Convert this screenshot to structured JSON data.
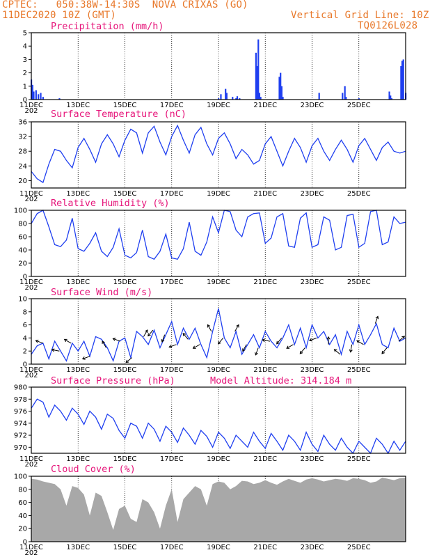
{
  "header": {
    "line1_left": "CPTEC:   050:38W-14:30S  NOVA CRIXAS (GO)",
    "line2_left": "11DEC2020 10Z (GMT)",
    "line2_right": "Vertical Grid Line: 10Z",
    "line3_right": "TQ0126L028"
  },
  "colors": {
    "header": "#e8782a",
    "title": "#e6157a",
    "series": "#1f3ff0",
    "cloud": "#a8a8a8"
  },
  "x_labels": [
    "11DEC",
    "13DEC",
    "15DEC",
    "17DEC",
    "19DEC",
    "21DEC",
    "23DEC",
    "25DEC"
  ],
  "x_stub": "202",
  "chart_data": [
    {
      "type": "bar",
      "title": "Precipitation (mm/h)",
      "ylim": [
        0,
        5
      ],
      "yticks": [
        0,
        1,
        2,
        3,
        4,
        5
      ],
      "x": [
        0.0,
        0.05,
        0.1,
        0.2,
        0.3,
        0.4,
        0.5,
        1.2,
        8.0,
        8.1,
        8.3,
        8.35,
        8.6,
        8.75,
        8.8,
        8.9,
        9.6,
        9.65,
        9.7,
        9.75,
        9.8,
        10.6,
        10.65,
        10.7,
        10.75,
        12.3,
        13.3,
        13.4,
        13.45,
        14.0,
        15.3,
        15.35,
        15.4,
        15.8,
        15.85,
        15.9,
        16.0
      ],
      "values": [
        1.5,
        1.1,
        0.6,
        0.7,
        0.4,
        0.5,
        0.2,
        0.1,
        0.1,
        0.4,
        0.8,
        0.5,
        0.2,
        0.1,
        0.25,
        0.1,
        3.5,
        2.5,
        4.5,
        0.5,
        0.2,
        1.7,
        2.0,
        1.0,
        0.2,
        0.5,
        0.5,
        1.0,
        0.2,
        0.1,
        0.6,
        0.3,
        0.1,
        2.5,
        2.9,
        3.0,
        0.5
      ]
    },
    {
      "type": "line",
      "title": "Surface Temperature (nC)",
      "ylim": [
        18,
        36
      ],
      "yticks": [
        20,
        24,
        28,
        32,
        36
      ],
      "x": [
        0,
        0.25,
        0.5,
        0.75,
        1.0,
        1.25,
        1.5,
        1.75,
        2.0,
        2.25,
        2.5,
        2.75,
        3.0,
        3.25,
        3.5,
        3.75,
        4.0,
        4.25,
        4.5,
        4.75,
        5.0,
        5.25,
        5.5,
        5.75,
        6.0,
        6.25,
        6.5,
        6.75,
        7.0,
        7.25,
        7.5,
        7.75,
        8.0,
        8.25,
        8.5,
        8.75,
        9.0,
        9.25,
        9.5,
        9.75,
        10.0,
        10.25,
        10.5,
        10.75,
        11.0,
        11.25,
        11.5,
        11.75,
        12.0,
        12.25,
        12.5,
        12.75,
        13.0,
        13.25,
        13.5,
        13.75,
        14.0,
        14.25,
        14.5,
        14.75,
        15.0,
        15.25,
        15.5,
        15.75,
        16.0
      ],
      "values": [
        22.5,
        20.5,
        19.5,
        24.5,
        28.5,
        28.0,
        25.5,
        23.5,
        29.0,
        31.5,
        28.5,
        25.0,
        30.0,
        32.5,
        30.0,
        26.5,
        31.0,
        34.0,
        33.0,
        27.5,
        33.0,
        34.8,
        30.5,
        27.0,
        32.0,
        35.0,
        31.0,
        27.5,
        32.5,
        34.5,
        30.0,
        27.0,
        31.5,
        33.0,
        30.0,
        26.0,
        28.5,
        27.0,
        24.5,
        25.5,
        30.0,
        32.0,
        28.0,
        24.0,
        28.0,
        31.5,
        29.0,
        25.0,
        29.5,
        31.5,
        28.0,
        25.5,
        28.5,
        31.0,
        28.5,
        25.0,
        29.5,
        31.5,
        28.5,
        25.5,
        29.0,
        30.5,
        28.0,
        27.5,
        28.0
      ]
    },
    {
      "type": "line",
      "title": "Relative Humidity (%)",
      "ylim": [
        0,
        100
      ],
      "yticks": [
        0,
        20,
        40,
        60,
        80,
        100
      ],
      "x": [
        0,
        0.25,
        0.5,
        0.75,
        1.0,
        1.25,
        1.5,
        1.75,
        2.0,
        2.25,
        2.5,
        2.75,
        3.0,
        3.25,
        3.5,
        3.75,
        4.0,
        4.25,
        4.5,
        4.75,
        5.0,
        5.25,
        5.5,
        5.75,
        6.0,
        6.25,
        6.5,
        6.75,
        7.0,
        7.25,
        7.5,
        7.75,
        8.0,
        8.25,
        8.5,
        8.75,
        9.0,
        9.25,
        9.5,
        9.75,
        10.0,
        10.25,
        10.5,
        10.75,
        11.0,
        11.25,
        11.5,
        11.75,
        12.0,
        12.25,
        12.5,
        12.75,
        13.0,
        13.25,
        13.5,
        13.75,
        14.0,
        14.25,
        14.5,
        14.75,
        15.0,
        15.25,
        15.5,
        15.75,
        16.0
      ],
      "values": [
        80,
        95,
        100,
        75,
        48,
        45,
        55,
        88,
        42,
        38,
        50,
        66,
        38,
        30,
        44,
        72,
        32,
        28,
        36,
        70,
        30,
        26,
        38,
        64,
        28,
        26,
        42,
        82,
        38,
        32,
        52,
        90,
        66,
        100,
        98,
        70,
        60,
        90,
        95,
        96,
        50,
        58,
        90,
        95,
        46,
        44,
        88,
        96,
        44,
        48,
        90,
        85,
        40,
        44,
        92,
        94,
        44,
        50,
        98,
        100,
        48,
        52,
        90,
        80,
        82
      ]
    },
    {
      "type": "line",
      "title": "Surface Wind (m/s)",
      "ylim": [
        0,
        10
      ],
      "yticks": [
        0,
        2,
        4,
        6,
        8,
        10
      ],
      "x": [
        0,
        0.25,
        0.5,
        0.75,
        1.0,
        1.25,
        1.5,
        1.75,
        2.0,
        2.25,
        2.5,
        2.75,
        3.0,
        3.25,
        3.5,
        3.75,
        4.0,
        4.25,
        4.5,
        4.75,
        5.0,
        5.25,
        5.5,
        5.75,
        6.0,
        6.25,
        6.5,
        6.75,
        7.0,
        7.25,
        7.5,
        7.75,
        8.0,
        8.25,
        8.5,
        8.75,
        9.0,
        9.25,
        9.5,
        9.75,
        10.0,
        10.25,
        10.5,
        10.75,
        11.0,
        11.25,
        11.5,
        11.75,
        12.0,
        12.25,
        12.5,
        12.75,
        13.0,
        13.25,
        13.5,
        13.75,
        14.0,
        14.25,
        14.5,
        14.75,
        15.0,
        15.25,
        15.5,
        15.75,
        16.0
      ],
      "values": [
        1.5,
        2.8,
        3.2,
        0.8,
        3.5,
        2.0,
        0.5,
        3.2,
        2.0,
        3.5,
        1.2,
        4.2,
        3.8,
        2.5,
        0.5,
        3.5,
        4.0,
        1.0,
        5.0,
        4.2,
        3.0,
        5.2,
        2.5,
        4.5,
        6.5,
        3.0,
        5.5,
        3.8,
        5.5,
        3.0,
        1.0,
        5.0,
        8.5,
        4.0,
        2.5,
        5.0,
        1.5,
        3.0,
        4.5,
        2.5,
        5.0,
        3.5,
        2.5,
        4.0,
        6.0,
        3.0,
        5.5,
        2.5,
        6.0,
        4.0,
        5.0,
        3.0,
        4.5,
        1.5,
        5.0,
        3.0,
        6.0,
        3.0,
        4.5,
        6.2,
        3.0,
        2.5,
        5.5,
        3.5,
        4.0
      ],
      "vectors_x": [
        0.5,
        1.2,
        1.7,
        2.5,
        3.2,
        3.8,
        4.3,
        4.8,
        5.2,
        5.7,
        6.2,
        6.7,
        7.2,
        7.7,
        8.2,
        8.7,
        9.2,
        9.7,
        10.2,
        10.7,
        11.2,
        11.7,
        12.2,
        12.7,
        13.2,
        13.7,
        14.2,
        14.7,
        15.2,
        15.7
      ],
      "vectors_dir": [
        160,
        170,
        150,
        200,
        120,
        160,
        220,
        60,
        230,
        250,
        200,
        130,
        210,
        120,
        230,
        60,
        240,
        250,
        170,
        230,
        210,
        230,
        200,
        90,
        140,
        260,
        150,
        70,
        230,
        40
      ]
    },
    {
      "type": "line",
      "title": "Surface Pressure (hPa)",
      "annotation": "Model Altitude: 314.184 m",
      "ylim": [
        969,
        980
      ],
      "yticks": [
        970,
        972,
        974,
        976,
        978,
        980
      ],
      "x": [
        0,
        0.25,
        0.5,
        0.75,
        1.0,
        1.25,
        1.5,
        1.75,
        2.0,
        2.25,
        2.5,
        2.75,
        3.0,
        3.25,
        3.5,
        3.75,
        4.0,
        4.25,
        4.5,
        4.75,
        5.0,
        5.25,
        5.5,
        5.75,
        6.0,
        6.25,
        6.5,
        6.75,
        7.0,
        7.25,
        7.5,
        7.75,
        8.0,
        8.25,
        8.5,
        8.75,
        9.0,
        9.25,
        9.5,
        9.75,
        10.0,
        10.25,
        10.5,
        10.75,
        11.0,
        11.25,
        11.5,
        11.75,
        12.0,
        12.25,
        12.5,
        12.75,
        13.0,
        13.25,
        13.5,
        13.75,
        14.0,
        14.25,
        14.5,
        14.75,
        15.0,
        15.25,
        15.5,
        15.75,
        16.0
      ],
      "values": [
        976.5,
        978.0,
        977.5,
        975.0,
        977.0,
        976.0,
        974.5,
        976.5,
        975.5,
        973.8,
        976.0,
        975.0,
        973.0,
        975.5,
        974.8,
        972.8,
        971.5,
        974.0,
        973.5,
        971.5,
        974.0,
        973.0,
        971.0,
        973.5,
        972.5,
        970.8,
        973.2,
        972.0,
        970.5,
        972.8,
        971.8,
        970.0,
        972.5,
        971.5,
        969.8,
        972.0,
        971.0,
        970.0,
        972.5,
        971.0,
        969.8,
        972.3,
        971.0,
        969.5,
        972.0,
        971.0,
        969.5,
        972.5,
        970.5,
        969.3,
        972.0,
        970.5,
        969.5,
        971.5,
        970.0,
        969.0,
        971.0,
        970.0,
        969.0,
        971.5,
        970.5,
        969.0,
        971.0,
        969.5,
        971.0
      ]
    },
    {
      "type": "area",
      "title": "Cloud Cover (%)",
      "ylim": [
        0,
        100
      ],
      "yticks": [
        0,
        20,
        40,
        60,
        80,
        100
      ],
      "x": [
        0,
        0.25,
        0.5,
        0.75,
        1.0,
        1.25,
        1.5,
        1.75,
        2.0,
        2.25,
        2.5,
        2.75,
        3.0,
        3.25,
        3.5,
        3.75,
        4.0,
        4.25,
        4.5,
        4.75,
        5.0,
        5.25,
        5.5,
        5.75,
        6.0,
        6.25,
        6.5,
        6.75,
        7.0,
        7.25,
        7.5,
        7.75,
        8.0,
        8.25,
        8.5,
        8.75,
        9.0,
        9.25,
        9.5,
        9.75,
        10.0,
        10.25,
        10.5,
        10.75,
        11.0,
        11.25,
        11.5,
        11.75,
        12.0,
        12.25,
        12.5,
        12.75,
        13.0,
        13.25,
        13.5,
        13.75,
        14.0,
        14.25,
        14.5,
        14.75,
        15.0,
        15.25,
        15.5,
        15.75,
        16.0
      ],
      "values": [
        96,
        95,
        92,
        90,
        88,
        80,
        55,
        85,
        82,
        72,
        40,
        75,
        70,
        45,
        18,
        50,
        55,
        35,
        30,
        65,
        60,
        45,
        20,
        55,
        80,
        30,
        65,
        75,
        85,
        80,
        55,
        88,
        92,
        90,
        80,
        85,
        93,
        92,
        88,
        90,
        94,
        90,
        87,
        92,
        96,
        93,
        90,
        95,
        97,
        95,
        92,
        94,
        96,
        95,
        93,
        97,
        96,
        94,
        90,
        92,
        98,
        96,
        94,
        97,
        98
      ]
    }
  ]
}
